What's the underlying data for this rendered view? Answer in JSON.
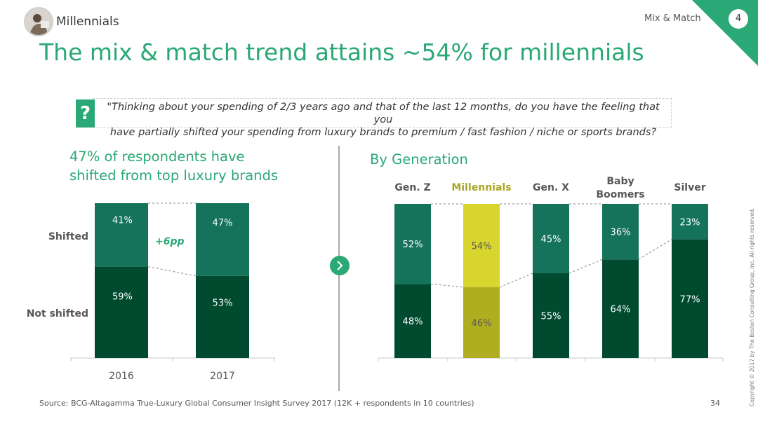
{
  "header": {
    "section_label": "Millennials",
    "topic_label": "Mix & Match",
    "page_badge": "4",
    "title": "The mix & match trend attains ~54% for millennials",
    "accent_color": "#2aa876"
  },
  "question": {
    "mark": "?",
    "text_line1": "\"Thinking about your spending of 2/3 years ago and that of the last 12 months, do you have the feeling that you",
    "text_line2": "have partially shifted your spending from luxury brands to premium / fast fashion / niche or sports brands?"
  },
  "left_panel": {
    "heading_line1": "47% of respondents have",
    "heading_line2": "shifted from top luxury brands"
  },
  "right_panel": {
    "heading": "By Generation"
  },
  "nav": {
    "next_icon": "chevron-right-icon"
  },
  "footer": {
    "source": "Source: BCG-Altagamma True-Luxury Global Consumer Insight Survey 2017 (12K + respondents in 10 countries)",
    "page_number": "34",
    "copyright": "Copyright © 2017 by The Boston Consulting Group, Inc. All rights reserved."
  },
  "chart_data": [
    {
      "type": "bar",
      "stacked": true,
      "categories": [
        "2016",
        "2017"
      ],
      "series": [
        {
          "name": "Not shifted",
          "values": [
            59,
            53
          ],
          "labels": [
            "59%",
            "53%"
          ],
          "color": "#004b30"
        },
        {
          "name": "Shifted",
          "values": [
            41,
            47
          ],
          "labels": [
            "41%",
            "47%"
          ],
          "color": "#14735a"
        }
      ],
      "annotation": "+6pp",
      "ylim": [
        0,
        100
      ]
    },
    {
      "type": "bar",
      "stacked": true,
      "categories": [
        "Gen. Z",
        "Millennials",
        "Gen. X",
        "Baby Boomers",
        "Silver"
      ],
      "highlight_category": "Millennials",
      "series": [
        {
          "values": [
            48,
            46,
            55,
            64,
            77
          ],
          "labels": [
            "48%",
            "46%",
            "55%",
            "64%",
            "77%"
          ],
          "color": "#004b30",
          "highlight_color": "#b1ad20"
        },
        {
          "values": [
            52,
            54,
            45,
            36,
            23
          ],
          "labels": [
            "52%",
            "54%",
            "45%",
            "36%",
            "23%"
          ],
          "color": "#14735a",
          "highlight_color": "#d8d52f"
        }
      ],
      "ylim": [
        0,
        100
      ]
    }
  ]
}
